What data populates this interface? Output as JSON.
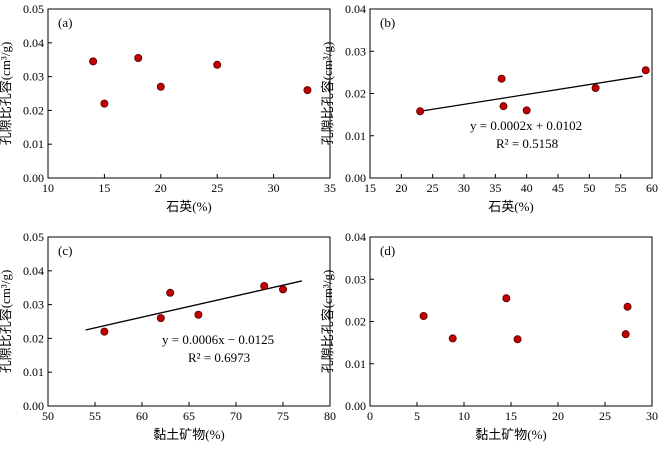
{
  "chart_data": [
    {
      "type": "scatter",
      "panel_label": "(a)",
      "xlabel": "石英(%)",
      "ylabel": "孔隙比孔容(cm³/g)",
      "xlim": [
        10,
        35
      ],
      "ylim": [
        0,
        0.05
      ],
      "xticks": [
        "10",
        "15",
        "20",
        "25",
        "30",
        "35"
      ],
      "yticks": [
        "0.00",
        "0.01",
        "0.02",
        "0.03",
        "0.04",
        "0.05"
      ],
      "points": [
        {
          "x": 14,
          "y": 0.0345
        },
        {
          "x": 15,
          "y": 0.022
        },
        {
          "x": 18,
          "y": 0.0355
        },
        {
          "x": 20,
          "y": 0.027
        },
        {
          "x": 25,
          "y": 0.0335
        },
        {
          "x": 33,
          "y": 0.026
        }
      ]
    },
    {
      "type": "scatter",
      "panel_label": "(b)",
      "xlabel": "石英(%)",
      "ylabel": "孔隙比孔容(cm³/g)",
      "xlim": [
        15,
        60
      ],
      "ylim": [
        0,
        0.04
      ],
      "xticks": [
        "15",
        "20",
        "25",
        "30",
        "35",
        "40",
        "45",
        "50",
        "55",
        "60"
      ],
      "yticks": [
        "0.00",
        "0.01",
        "0.02",
        "0.03",
        "0.04"
      ],
      "points": [
        {
          "x": 23,
          "y": 0.0158
        },
        {
          "x": 36,
          "y": 0.0235
        },
        {
          "x": 36.3,
          "y": 0.017
        },
        {
          "x": 40,
          "y": 0.016
        },
        {
          "x": 51,
          "y": 0.0213
        },
        {
          "x": 59,
          "y": 0.0255
        }
      ],
      "trendline": {
        "x": [
          23,
          58.5
        ],
        "y": [
          0.0158,
          0.0241
        ]
      },
      "equation": "y = 0.0002x + 0.0102",
      "r2": "R² = 0.5158"
    },
    {
      "type": "scatter",
      "panel_label": "(c)",
      "xlabel": "黏土矿物(%)",
      "ylabel": "孔隙比孔容(cm³/g)",
      "xlim": [
        50,
        80
      ],
      "ylim": [
        0,
        0.05
      ],
      "xticks": [
        "50",
        "55",
        "60",
        "65",
        "70",
        "75",
        "80"
      ],
      "yticks": [
        "0.00",
        "0.01",
        "0.02",
        "0.03",
        "0.04",
        "0.05"
      ],
      "points": [
        {
          "x": 56,
          "y": 0.022
        },
        {
          "x": 62,
          "y": 0.026
        },
        {
          "x": 63,
          "y": 0.0335
        },
        {
          "x": 66,
          "y": 0.027
        },
        {
          "x": 73,
          "y": 0.0355
        },
        {
          "x": 75,
          "y": 0.0345
        }
      ],
      "trendline": {
        "x": [
          54,
          77
        ],
        "y": [
          0.0225,
          0.037
        ]
      },
      "equation": "y = 0.0006x − 0.0125",
      "r2": "R² = 0.6973"
    },
    {
      "type": "scatter",
      "panel_label": "(d)",
      "xlabel": "黏土矿物(%)",
      "ylabel": "孔隙比孔容(cm³/g)",
      "xlim": [
        0,
        30
      ],
      "ylim": [
        0,
        0.04
      ],
      "xticks": [
        "0",
        "5",
        "10",
        "15",
        "20",
        "25",
        "30"
      ],
      "yticks": [
        "0.00",
        "0.01",
        "0.02",
        "0.03",
        "0.04"
      ],
      "points": [
        {
          "x": 5.7,
          "y": 0.0213
        },
        {
          "x": 8.8,
          "y": 0.016
        },
        {
          "x": 14.5,
          "y": 0.0255
        },
        {
          "x": 15.7,
          "y": 0.0158
        },
        {
          "x": 27.2,
          "y": 0.017
        },
        {
          "x": 27.4,
          "y": 0.0235
        }
      ]
    }
  ]
}
